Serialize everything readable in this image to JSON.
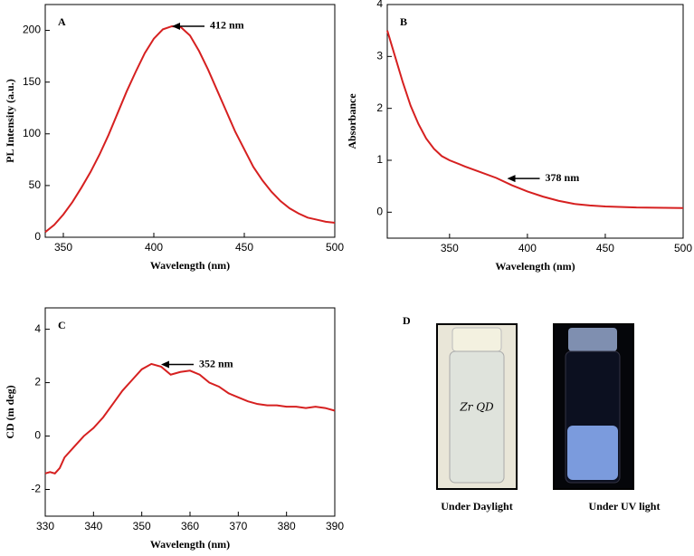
{
  "chart_data": [
    {
      "type": "line",
      "panel_label": "A",
      "x_label": "Wavelength (nm)",
      "y_label": "PL Intensity (a.u.)",
      "color": "#d62020",
      "x": [
        340,
        345,
        350,
        355,
        360,
        365,
        370,
        375,
        380,
        385,
        390,
        395,
        400,
        405,
        410,
        415,
        420,
        425,
        430,
        435,
        440,
        445,
        450,
        455,
        460,
        465,
        470,
        475,
        480,
        485,
        490,
        495,
        500
      ],
      "values": [
        5,
        12,
        22,
        34,
        48,
        63,
        80,
        99,
        120,
        141,
        160,
        178,
        192,
        201,
        204,
        203,
        195,
        180,
        162,
        142,
        122,
        102,
        85,
        68,
        55,
        44,
        35,
        28,
        23,
        19,
        17,
        15,
        14
      ],
      "xlim": [
        340,
        500
      ],
      "ylim": [
        0,
        225
      ],
      "xticks": [
        350,
        400,
        450,
        500
      ],
      "yticks": [
        0,
        50,
        100,
        150,
        200
      ],
      "annotation": {
        "text": "412 nm",
        "x": 410,
        "y": 204
      }
    },
    {
      "type": "line",
      "panel_label": "B",
      "x_label": "Wavelength (nm)",
      "y_label": "Absorbance",
      "color": "#d62020",
      "x": [
        310,
        315,
        320,
        325,
        330,
        335,
        340,
        345,
        350,
        360,
        370,
        380,
        390,
        400,
        410,
        420,
        430,
        440,
        450,
        470,
        500
      ],
      "values": [
        3.5,
        3.0,
        2.5,
        2.05,
        1.7,
        1.42,
        1.22,
        1.08,
        1.0,
        0.88,
        0.77,
        0.66,
        0.52,
        0.4,
        0.3,
        0.22,
        0.16,
        0.13,
        0.11,
        0.09,
        0.08
      ],
      "xlim": [
        310,
        500
      ],
      "ylim": [
        -0.5,
        4
      ],
      "xticks": [
        350,
        400,
        450,
        500
      ],
      "yticks": [
        0,
        1,
        2,
        3,
        4
      ],
      "annotation": {
        "text": "378 nm",
        "x": 387,
        "y": 0.65
      }
    },
    {
      "type": "line",
      "panel_label": "C",
      "x_label": "Wavelength (nm)",
      "y_label": "CD (m deg)",
      "color": "#d62020",
      "x": [
        330,
        331,
        332,
        333,
        334,
        336,
        338,
        340,
        342,
        344,
        346,
        348,
        350,
        352,
        354,
        356,
        358,
        360,
        362,
        364,
        366,
        368,
        370,
        372,
        374,
        376,
        378,
        380,
        382,
        384,
        386,
        388,
        390
      ],
      "values": [
        -1.4,
        -1.35,
        -1.4,
        -1.2,
        -0.8,
        -0.4,
        0.0,
        0.3,
        0.7,
        1.2,
        1.7,
        2.1,
        2.5,
        2.7,
        2.6,
        2.3,
        2.4,
        2.45,
        2.3,
        2.0,
        1.85,
        1.6,
        1.45,
        1.3,
        1.2,
        1.15,
        1.15,
        1.1,
        1.1,
        1.05,
        1.1,
        1.05,
        0.95
      ],
      "xlim": [
        330,
        390
      ],
      "ylim": [
        -3,
        4.8
      ],
      "xticks": [
        330,
        340,
        350,
        360,
        370,
        380,
        390
      ],
      "yticks": [
        -2,
        0,
        2,
        4
      ],
      "annotation": {
        "text": "352 nm",
        "x": 354,
        "y": 2.68
      }
    }
  ],
  "photo_panel": {
    "panel_label": "D",
    "vial_text": "Zr QD",
    "captions": [
      "Under Daylight",
      "Under UV light"
    ]
  }
}
